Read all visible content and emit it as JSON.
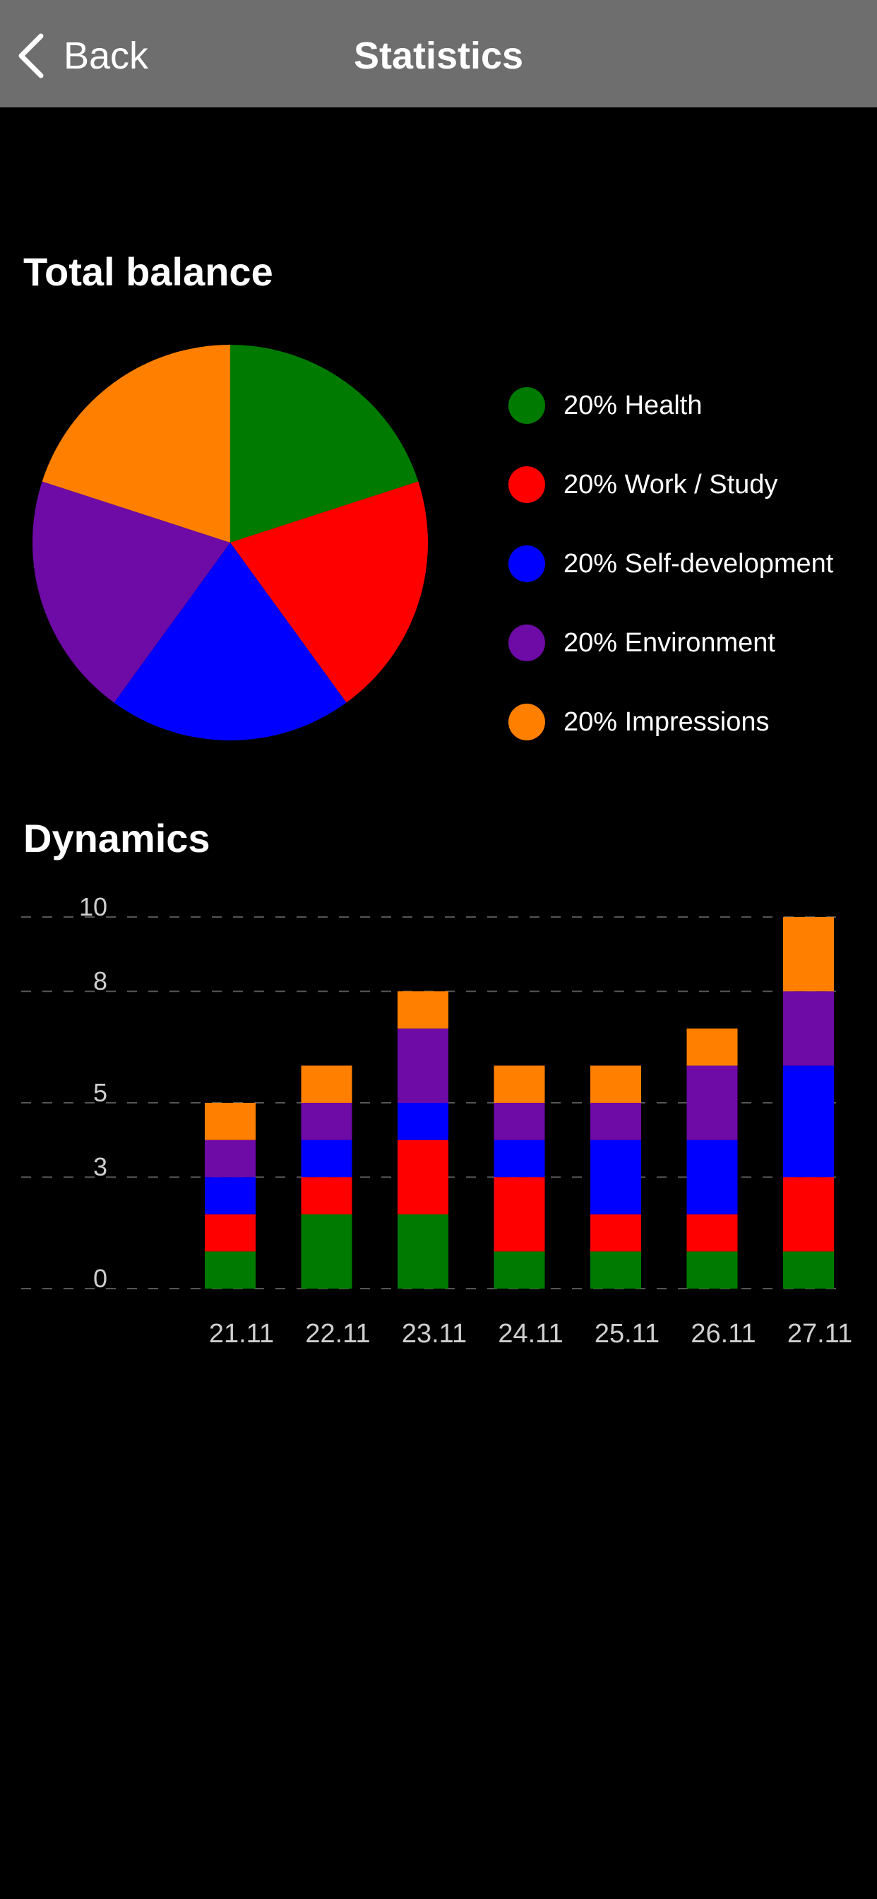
{
  "nav": {
    "back_label": "Back",
    "title": "Statistics",
    "back_icon": "chevron-left-icon"
  },
  "sections": {
    "balance_title": "Total balance",
    "dynamics_title": "Dynamics"
  },
  "colors": {
    "health": "#007a00",
    "work": "#ff0000",
    "self": "#0000ff",
    "environment": "#6e0aa6",
    "impressions": "#ff8000",
    "navbar": "#6e6e6e",
    "background": "#000000"
  },
  "legend": [
    {
      "label": "20% Health",
      "color": "#007a00"
    },
    {
      "label": "20% Work / Study",
      "color": "#ff0000"
    },
    {
      "label": "20% Self-development",
      "color": "#0000ff"
    },
    {
      "label": "20% Environment",
      "color": "#6e0aa6"
    },
    {
      "label": "20% Impressions",
      "color": "#ff8000"
    }
  ],
  "chart_data": [
    {
      "type": "pie",
      "title": "Total balance",
      "slices": [
        {
          "name": "Health",
          "value": 20,
          "color": "#007a00"
        },
        {
          "name": "Work / Study",
          "value": 20,
          "color": "#ff0000"
        },
        {
          "name": "Self-development",
          "value": 20,
          "color": "#0000ff"
        },
        {
          "name": "Environment",
          "value": 20,
          "color": "#6e0aa6"
        },
        {
          "name": "Impressions",
          "value": 20,
          "color": "#ff8000"
        }
      ]
    },
    {
      "type": "bar",
      "stacked": true,
      "title": "Dynamics",
      "categories": [
        "21.11",
        "22.11",
        "23.11",
        "24.11",
        "25.11",
        "26.11",
        "27.11"
      ],
      "yticks": [
        0,
        3,
        5,
        8,
        10
      ],
      "ylim": [
        0,
        10
      ],
      "grid": true,
      "series": [
        {
          "name": "Health",
          "color": "#007a00",
          "values": [
            1,
            2,
            2,
            1,
            1,
            1,
            1
          ]
        },
        {
          "name": "Work / Study",
          "color": "#ff0000",
          "values": [
            1,
            1,
            2,
            2,
            1,
            1,
            2
          ]
        },
        {
          "name": "Self-development",
          "color": "#0000ff",
          "values": [
            1,
            1,
            1,
            1,
            2,
            2,
            3
          ]
        },
        {
          "name": "Environment",
          "color": "#6e0aa6",
          "values": [
            1,
            1,
            2,
            1,
            1,
            2,
            2
          ]
        },
        {
          "name": "Impressions",
          "color": "#ff8000",
          "values": [
            1,
            1,
            1,
            1,
            1,
            1,
            2
          ]
        }
      ]
    }
  ]
}
